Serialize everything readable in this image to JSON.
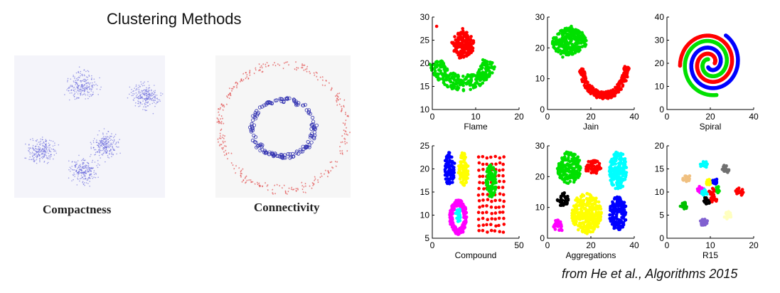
{
  "title": "Clustering Methods",
  "caption": "from He et al., Algorithms 2015",
  "illustrations": [
    {
      "label": "Compactness",
      "marker_color": "#5a5ad8",
      "blob_centers": [
        [
          0,
          0
        ],
        [
          1,
          0
        ],
        [
          0,
          1
        ],
        [
          1,
          1
        ],
        [
          0.5,
          0.5
        ]
      ]
    },
    {
      "label": "Connectivity",
      "outer_color": "#e04040",
      "inner_color": "#3030b0"
    }
  ],
  "colors": {
    "red": "#ff0000",
    "green": "#00e000",
    "blue": "#0000ff",
    "yellow": "#ffff00",
    "magenta": "#ff00ff",
    "cyan": "#00ffff",
    "black": "#000000"
  },
  "chart_data": [
    {
      "type": "scatter",
      "xlabel": "Flame",
      "xlim": [
        0,
        20
      ],
      "ylim": [
        10,
        30
      ],
      "xticks": [
        0,
        10,
        20
      ],
      "yticks": [
        10,
        15,
        20,
        25,
        30
      ],
      "clusters": [
        {
          "color": "#ff0000",
          "shape": "blob",
          "cx": 7,
          "cy": 24,
          "rx": 2.6,
          "ry": 3,
          "points": [
            [
              7,
              27.5
            ],
            [
              4.5,
              24.5
            ],
            [
              9.5,
              24.5
            ],
            [
              6,
              21.8
            ],
            [
              8.5,
              22
            ],
            [
              1,
              28
            ]
          ]
        },
        {
          "color": "#00e000",
          "shape": "arc",
          "cx": 7,
          "cy": 22,
          "r": 6.3,
          "a0": 195,
          "a1": 345,
          "width": 3.3
        }
      ]
    },
    {
      "type": "scatter",
      "xlabel": "Jain",
      "xlim": [
        0,
        40
      ],
      "ylim": [
        0,
        30
      ],
      "xticks": [
        0,
        20,
        40
      ],
      "yticks": [
        0,
        10,
        20,
        30
      ],
      "clusters": [
        {
          "color": "#00e000",
          "shape": "blob",
          "cx": 10,
          "cy": 22,
          "rx": 8,
          "ry": 4.5,
          "points": [
            [
              11,
              27
            ],
            [
              15,
              25
            ],
            [
              4,
              19
            ],
            [
              7,
              17
            ],
            [
              12,
              23
            ]
          ]
        },
        {
          "color": "#ff0000",
          "shape": "arc",
          "cx": 26,
          "cy": 15,
          "r": 10.5,
          "a0": 190,
          "a1": 355,
          "width": 2.4
        }
      ]
    },
    {
      "type": "scatter",
      "xlabel": "Spiral",
      "xlim": [
        0,
        40
      ],
      "ylim": [
        0,
        40
      ],
      "xticks": [
        0,
        20,
        40
      ],
      "yticks": [
        0,
        10,
        20,
        30,
        40
      ],
      "clusters": [
        {
          "color": "#ff0000",
          "shape": "spiral",
          "cx": 20,
          "cy": 20,
          "r0": 2,
          "r1": 14,
          "t0": 0,
          "t1": 9.5,
          "width": 1.6
        },
        {
          "color": "#00e000",
          "shape": "spiral",
          "cx": 20,
          "cy": 20,
          "r0": 2,
          "r1": 14,
          "t0": 2.09,
          "t1": 11.2,
          "width": 1.6
        },
        {
          "color": "#0000ff",
          "shape": "spiral",
          "cx": 20,
          "cy": 20,
          "r0": 2,
          "r1": 14,
          "t0": 4.19,
          "t1": 13.6,
          "width": 1.6
        }
      ]
    },
    {
      "type": "scatter",
      "xlabel": "Compound",
      "xlim": [
        0,
        50
      ],
      "ylim": [
        5,
        25
      ],
      "xticks": [
        0,
        50
      ],
      "yticks": [
        5,
        10,
        15,
        20,
        25
      ],
      "clusters": [
        {
          "color": "#0000ff",
          "shape": "blob",
          "cx": 10,
          "cy": 20,
          "rx": 3,
          "ry": 3.6
        },
        {
          "color": "#ffff00",
          "shape": "blob",
          "cx": 18,
          "cy": 20,
          "rx": 3,
          "ry": 3.6
        },
        {
          "color": "#ff0000",
          "shape": "grid",
          "x0": 27,
          "x1": 41,
          "y0": 6.5,
          "y1": 22.5,
          "nx": 7,
          "ny": 13
        },
        {
          "color": "#00e000",
          "shape": "blob",
          "cx": 34,
          "cy": 17.5,
          "rx": 3,
          "ry": 3.6
        },
        {
          "color": "#ff00ff",
          "shape": "ring",
          "cx": 15,
          "cy": 9.5,
          "rx": 5,
          "ry": 3.8,
          "w": 1.8
        },
        {
          "color": "#00ffff",
          "shape": "blob",
          "cx": 15,
          "cy": 10,
          "rx": 1.6,
          "ry": 1.5
        }
      ]
    },
    {
      "type": "scatter",
      "xlabel": "Aggregations",
      "xlim": [
        0,
        40
      ],
      "ylim": [
        0,
        30
      ],
      "xticks": [
        0,
        20,
        40
      ],
      "yticks": [
        0,
        10,
        20,
        30
      ],
      "clusters": [
        {
          "color": "#00e000",
          "shape": "blob",
          "cx": 10,
          "cy": 23,
          "rx": 5.5,
          "ry": 5.2
        },
        {
          "color": "#ff0000",
          "shape": "blob",
          "cx": 21,
          "cy": 23,
          "rx": 3.6,
          "ry": 2.4
        },
        {
          "color": "#00ffff",
          "shape": "blob",
          "cx": 32.5,
          "cy": 22,
          "rx": 4,
          "ry": 6.5
        },
        {
          "color": "#000000",
          "shape": "blob",
          "cx": 7,
          "cy": 12.5,
          "rx": 2.6,
          "ry": 2.3
        },
        {
          "color": "#ffff00",
          "shape": "blob",
          "cx": 18,
          "cy": 8,
          "rx": 7,
          "ry": 6.5
        },
        {
          "color": "#0000ff",
          "shape": "blob",
          "cx": 32.5,
          "cy": 8,
          "rx": 4,
          "ry": 5.5
        },
        {
          "color": "#ff00ff",
          "shape": "blob",
          "cx": 5,
          "cy": 4,
          "rx": 2.4,
          "ry": 2
        }
      ]
    },
    {
      "type": "scatter",
      "xlabel": "R15",
      "xlim": [
        0,
        20
      ],
      "ylim": [
        0,
        20
      ],
      "xticks": [
        0,
        10,
        20
      ],
      "yticks": [
        0,
        5,
        10,
        15,
        20
      ],
      "clusters": [
        {
          "color": "#00ffff",
          "shape": "blob",
          "cx": 8.5,
          "cy": 16,
          "rx": 0.8,
          "ry": 0.9
        },
        {
          "color": "#707070",
          "shape": "blob",
          "cx": 13.5,
          "cy": 15,
          "rx": 0.9,
          "ry": 0.9
        },
        {
          "color": "#f0c080",
          "shape": "blob",
          "cx": 4.5,
          "cy": 13,
          "rx": 0.9,
          "ry": 0.9
        },
        {
          "color": "#ffff00",
          "shape": "blob",
          "cx": 9.5,
          "cy": 12.2,
          "rx": 0.7,
          "ry": 0.7
        },
        {
          "color": "#0000ff",
          "shape": "blob",
          "cx": 11,
          "cy": 12.3,
          "rx": 0.7,
          "ry": 0.7
        },
        {
          "color": "#ff00ff",
          "shape": "blob",
          "cx": 7.8,
          "cy": 10.6,
          "rx": 0.8,
          "ry": 0.8
        },
        {
          "color": "#00ffff",
          "shape": "blob",
          "cx": 8.6,
          "cy": 9.8,
          "rx": 0.7,
          "ry": 0.7
        },
        {
          "color": "#ff0000",
          "shape": "blob",
          "cx": 10.5,
          "cy": 10,
          "rx": 0.8,
          "ry": 0.8
        },
        {
          "color": "#00e000",
          "shape": "blob",
          "cx": 11.8,
          "cy": 10.5,
          "rx": 0.7,
          "ry": 0.7
        },
        {
          "color": "#000000",
          "shape": "blob",
          "cx": 9.3,
          "cy": 8.2,
          "rx": 0.8,
          "ry": 0.8
        },
        {
          "color": "#ff0000",
          "shape": "blob",
          "cx": 10.8,
          "cy": 8.4,
          "rx": 0.7,
          "ry": 0.7
        },
        {
          "color": "#ff0000",
          "shape": "blob",
          "cx": 16.7,
          "cy": 10,
          "rx": 0.9,
          "ry": 0.9
        },
        {
          "color": "#00c000",
          "shape": "blob",
          "cx": 4,
          "cy": 7,
          "rx": 0.9,
          "ry": 0.8
        },
        {
          "color": "#ffffc0",
          "shape": "blob",
          "cx": 14,
          "cy": 5,
          "rx": 0.9,
          "ry": 0.9
        },
        {
          "color": "#8060d0",
          "shape": "blob",
          "cx": 8.5,
          "cy": 3.5,
          "rx": 0.9,
          "ry": 0.8
        }
      ]
    }
  ]
}
